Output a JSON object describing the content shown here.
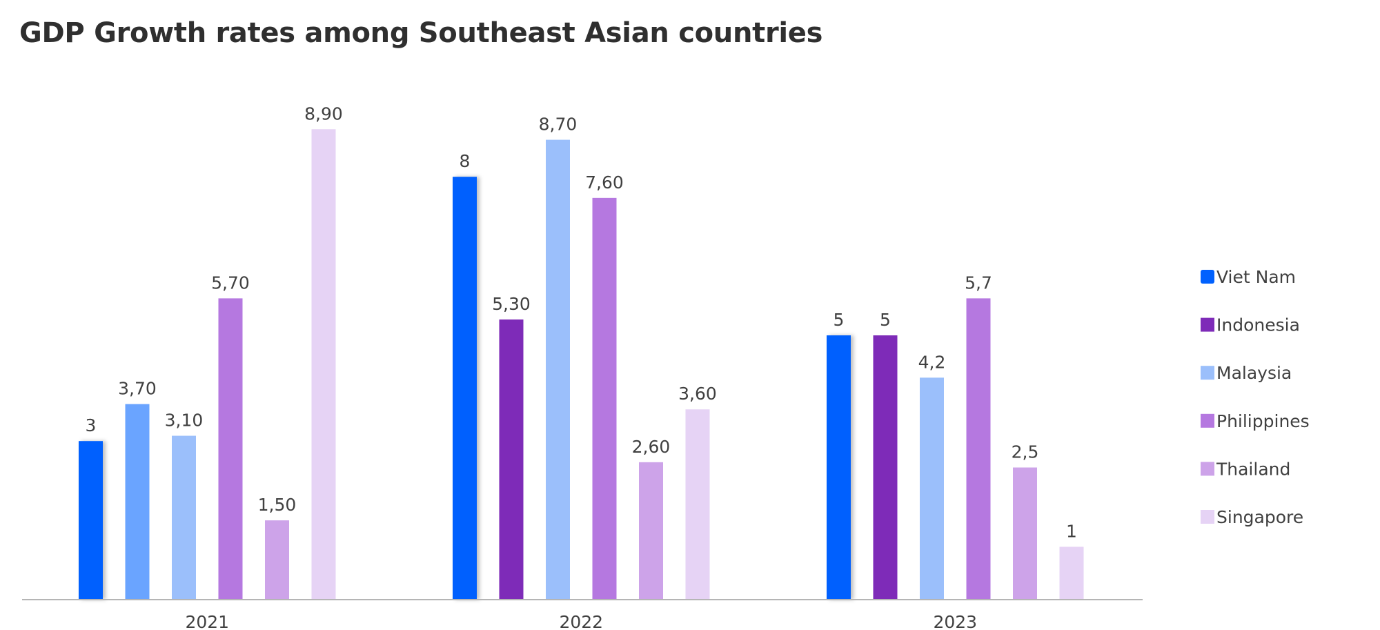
{
  "chart_data": {
    "type": "bar",
    "title": "GDP Growth rates among Southeast Asian countries",
    "xlabel": "",
    "ylabel": "",
    "categories": [
      "2021",
      "2022",
      "2023"
    ],
    "ylim": [
      0,
      10
    ],
    "grid": false,
    "legend_position": "right",
    "series": [
      {
        "name": "Viet Nam",
        "values": [
          3,
          8,
          5
        ],
        "labels": [
          "3",
          "8",
          "5"
        ],
        "color": "#0061fe"
      },
      {
        "name": "Indonesia",
        "values": [
          3.7,
          5.3,
          5
        ],
        "labels": [
          "3,70",
          "5,30",
          "5"
        ],
        "color": "#7e2bb8",
        "first_color": "#6aa4ff"
      },
      {
        "name": "Malaysia",
        "values": [
          3.1,
          8.7,
          4.2
        ],
        "labels": [
          "3,10",
          "8,70",
          "4,2"
        ],
        "color": "#9bbffb"
      },
      {
        "name": "Philippines",
        "values": [
          5.7,
          7.6,
          5.7
        ],
        "labels": [
          "5,70",
          "7,60",
          "5,7"
        ],
        "color": "#b578e0"
      },
      {
        "name": "Thailand",
        "values": [
          1.5,
          2.6,
          2.5
        ],
        "labels": [
          "1,50",
          "2,60",
          "2,5"
        ],
        "color": "#cda3e9"
      },
      {
        "name": "Singapore",
        "values": [
          8.9,
          3.6,
          1
        ],
        "labels": [
          "8,90",
          "3,60",
          "1"
        ],
        "color": "#e6d3f5"
      }
    ]
  }
}
